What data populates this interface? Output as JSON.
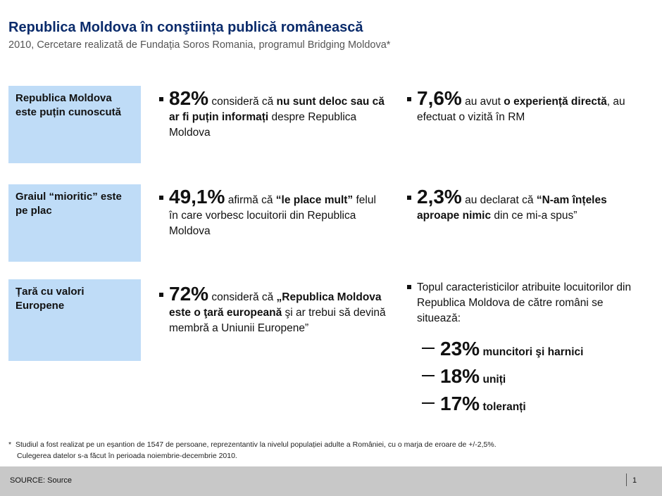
{
  "header": {
    "title": "Republica Moldova în conştiința publică românească",
    "subtitle": "2010, Cercetare realizată de Fundația Soros Romania, programul Bridging Moldova*"
  },
  "rows": [
    {
      "label": "Republica Moldova este puțin cunoscută",
      "left": {
        "pct": "82%",
        "pre": " consideră că ",
        "bold": "nu sunt deloc sau că ar fi puțin informați",
        "post": " despre Republica Moldova"
      },
      "right": {
        "pct": "7,6%",
        "pre": " au avut ",
        "bold": "o experiență directă",
        "post": ", au efectuat o vizită în RM"
      }
    },
    {
      "label": "Graiul “mioritic” este pe plac",
      "left": {
        "pct": "49,1%",
        "pre": " afirmă că ",
        "bold": "“le place mult”",
        "post": " felul în care vorbesc locuitorii din Republica Moldova"
      },
      "right": {
        "pct": "2,3%",
        "pre": " au declarat că ",
        "bold": "“N-am înțeles aproape nimic",
        "post": " din ce mi-a spus”"
      }
    },
    {
      "label": "Țară cu valori Europene",
      "left": {
        "pct": "72%",
        "pre": " consideră că ",
        "bold": "„Republica Moldova este o ţară europeană",
        "post": " şi ar trebui să devină membră a Uniunii Europene”"
      },
      "right": {
        "intro": "Topul caracteristicilor atribuite locuitorilor din Republica Moldova de către români se situează:",
        "items": [
          {
            "pct": "23%",
            "label": "muncitori şi harnici"
          },
          {
            "pct": "18%",
            "label": "uniți"
          },
          {
            "pct": "17%",
            "label": "toleranți"
          }
        ]
      }
    }
  ],
  "footnote": {
    "star": "*",
    "line1": "Studiul a fost realizat pe un eșantion de 1547 de persoane, reprezentantiv  la nivelul populației adulte a României, cu o marja de eroare de +/-2,5%.",
    "line2": "Culegerea  datelor s-a făcut în perioada noiembrie-decembrie 2010."
  },
  "footer": {
    "source": "SOURCE: Source",
    "page": "1"
  },
  "colors": {
    "title": "#0a2b6b",
    "label_box": "#bfdcf7",
    "footer": "#c8c8c8"
  }
}
